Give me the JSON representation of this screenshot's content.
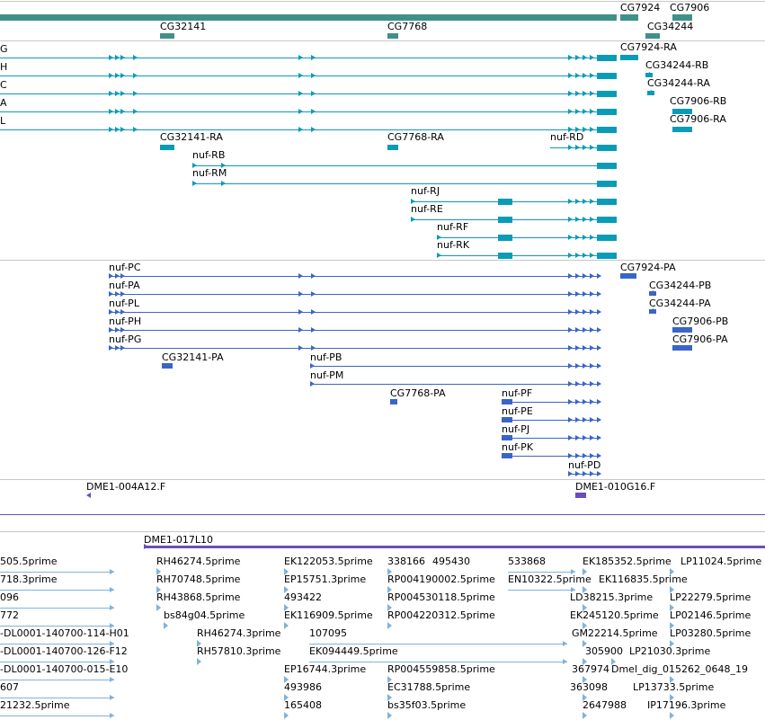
{
  "colors": {
    "gene": "#3f9089",
    "transcript": "#0a9cb7",
    "protein": "#3a65c7",
    "clone": "#6a4fb6",
    "est": "#7fb2db",
    "divider": "#c8c8c8"
  },
  "tracks": {
    "genes": {
      "names": [
        "CG7924",
        "CG7906",
        "CG32141",
        "CG7768",
        "CG34244"
      ]
    },
    "transcripts": {
      "left_edge_labels": [
        "G",
        "H",
        "C",
        "A",
        "L"
      ],
      "names": [
        "CG7924-RA",
        "CG34244-RB",
        "CG34244-RA",
        "CG7906-RB",
        "CG7906-RA",
        "CG32141-RA",
        "CG7768-RA",
        "nuf-RD",
        "nuf-RB",
        "nuf-RM",
        "nuf-RJ",
        "nuf-RE",
        "nuf-RF",
        "nuf-RK"
      ]
    },
    "proteins": {
      "names": [
        "nuf-PC",
        "nuf-PA",
        "nuf-PL",
        "nuf-PH",
        "nuf-PG",
        "CG7924-PA",
        "CG34244-PB",
        "CG34244-PA",
        "CG7906-PB",
        "CG7906-PA",
        "CG32141-PA",
        "nuf-PB",
        "nuf-PM",
        "CG7768-PA",
        "nuf-PF",
        "nuf-PE",
        "nuf-PJ",
        "nuf-PK",
        "nuf-PD"
      ]
    },
    "clones": {
      "names": [
        "DME1-004A12.F",
        "DME1-010G16.F",
        "DME1-017L10"
      ]
    },
    "ests": {
      "names": [
        "505.5prime",
        "718.3prime",
        "096",
        "772",
        "-DL0001-140700-114-H01",
        "-DL0001-140700-126-F12",
        "-DL0001-140700-015-E10",
        "607",
        "21232.5prime",
        "RH46274.5prime",
        "RH70748.5prime",
        "RH43868.5prime",
        "bs84g04.5prime",
        "RH46274.3prime",
        "RH57810.3prime",
        "EK122053.5prime",
        "EP15751.3prime",
        "493422",
        "EK116909.5prime",
        "107095",
        "EK094449.5prime",
        "EP16744.3prime",
        "493986",
        "165408",
        "338166",
        "495430",
        "RP004190002.5prime",
        "RP004530118.5prime",
        "RP004220312.5prime",
        "RP004559858.5prime",
        "EC31788.5prime",
        "bs35f03.5prime",
        "533868",
        "EN10322.5prime",
        "EK185352.5prime",
        "EK116835.5prime",
        "LD38215.3prime",
        "EK245120.5prime",
        "GM22214.5prime",
        "305900",
        "367974",
        "363098",
        "2647988",
        "LP11024.5prime",
        "LP22279.5prime",
        "LP02146.5prime",
        "LP03280.5prime",
        "LP21030.3prime",
        "Dmel_dig_015262_0648_19",
        "LP13733.5prime",
        "IP17196.3prime"
      ]
    }
  }
}
